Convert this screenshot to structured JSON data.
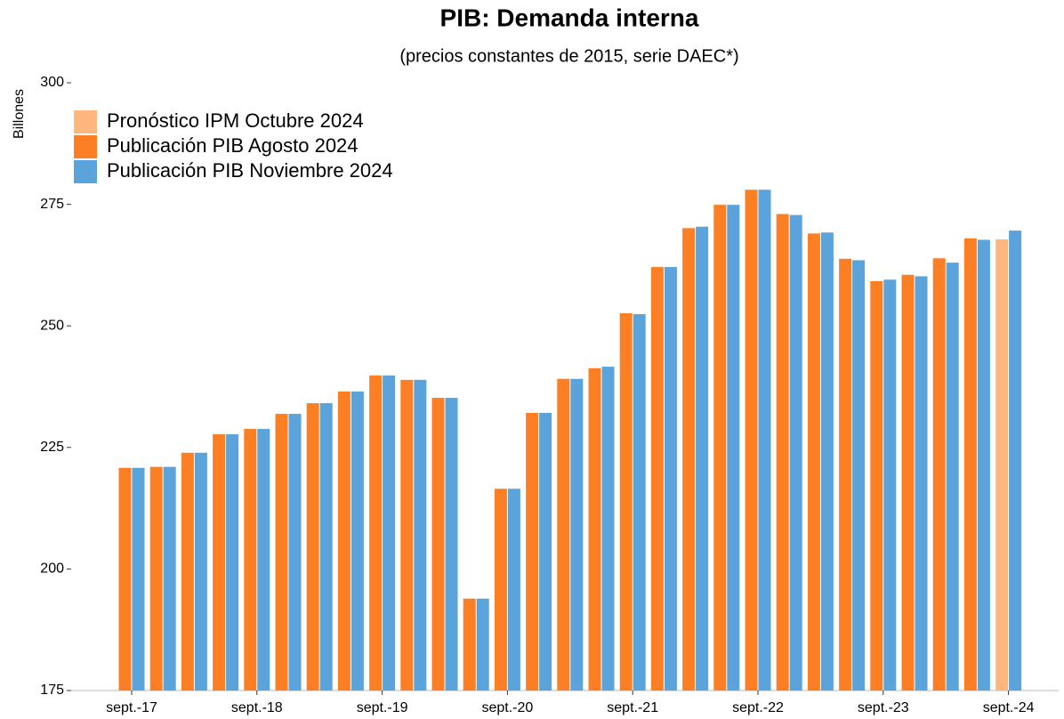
{
  "chart_data": {
    "type": "bar",
    "title": "PIB: Demanda interna",
    "subtitle": "(precios constantes de 2015, serie DAEC*)",
    "y_label": "Billones",
    "categories": [
      "sept.-17",
      null,
      null,
      null,
      "sept.-18",
      null,
      null,
      null,
      "sept.-19",
      null,
      null,
      null,
      "sept.-20",
      null,
      null,
      null,
      "sept.-21",
      null,
      null,
      null,
      "sept.-22",
      null,
      null,
      null,
      "sept.-23",
      null,
      null,
      null,
      "sept.-24"
    ],
    "series": [
      {
        "name": "Pronóstico IPM Octubre 2024",
        "color": "#ffb77e",
        "values": [
          null,
          null,
          null,
          null,
          null,
          null,
          null,
          null,
          null,
          null,
          null,
          null,
          null,
          null,
          null,
          null,
          null,
          null,
          null,
          null,
          null,
          null,
          null,
          null,
          null,
          null,
          null,
          null,
          267.8
        ]
      },
      {
        "name": "Publicación PIB Agosto 2024",
        "color": "#fd7f23",
        "values": [
          220.8,
          221.0,
          223.9,
          227.7,
          228.8,
          231.9,
          234.1,
          236.5,
          239.8,
          238.9,
          235.2,
          193.9,
          216.5,
          232.1,
          239.1,
          241.3,
          252.6,
          262.1,
          270.1,
          274.9,
          278.0,
          273.0,
          269.0,
          263.8,
          259.2,
          260.5,
          263.9,
          268.0,
          null
        ]
      },
      {
        "name": "Publicación PIB Noviembre 2024",
        "color": "#5aa3db",
        "values": [
          220.8,
          221.0,
          223.9,
          227.7,
          228.8,
          231.9,
          234.1,
          236.5,
          239.8,
          238.9,
          235.2,
          193.9,
          216.5,
          232.1,
          239.1,
          241.6,
          252.4,
          262.1,
          270.4,
          274.9,
          278.0,
          272.8,
          269.2,
          263.5,
          259.5,
          260.2,
          263.0,
          267.7,
          269.6
        ]
      }
    ],
    "ylim": [
      175,
      300
    ],
    "yticks": [
      175,
      200,
      225,
      250,
      275,
      300
    ]
  }
}
